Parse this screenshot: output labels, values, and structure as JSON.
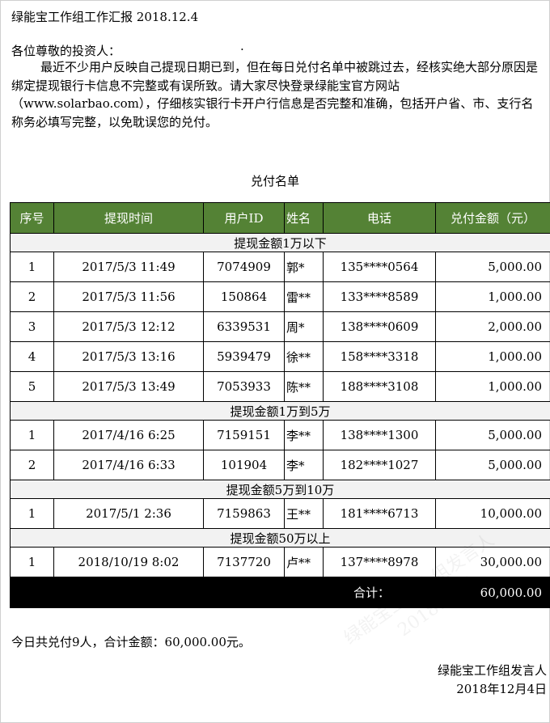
{
  "title": "绿能宝工作组工作汇报 2018.12.4",
  "greeting": "各位尊敬的投资人：",
  "greeting_dot": "·",
  "paragraph": "最近不少用户反映自己提现日期已到，但在每日兑付名单中被跳过去，经核实绝大部分原因是绑定提现银行卡信息不完整或有误所致。请大家尽快登录绿能宝官方网站（www.solarbao.com），仔细核实银行卡开户行信息是否完整和准确，包括开户省、市、支行名称务必填写完整，以免耽误您的兑付。",
  "table_caption": "兑付名单",
  "colors": {
    "header_bg": "#548235",
    "section_bg": "#f2f2f2",
    "total_bg": "#000000"
  },
  "table": {
    "headers": [
      "序号",
      "提现时间",
      "用户ID",
      "姓名",
      "电话",
      "兑付金额（元）"
    ],
    "sections": [
      {
        "label": "提现金额1万以下",
        "rows": [
          [
            "1",
            "2017/5/3 11:49",
            "7074909",
            "郭*",
            "135****0564",
            "5,000.00"
          ],
          [
            "2",
            "2017/5/3 11:56",
            "150864",
            "雷**",
            "133****8589",
            "1,000.00"
          ],
          [
            "3",
            "2017/5/3 12:12",
            "6339531",
            "周*",
            "138****0609",
            "2,000.00"
          ],
          [
            "4",
            "2017/5/3 13:16",
            "5939479",
            "徐**",
            "158****3318",
            "1,000.00"
          ],
          [
            "5",
            "2017/5/3 13:49",
            "7053933",
            "陈**",
            "188****3108",
            "1,000.00"
          ]
        ]
      },
      {
        "label": "提现金额1万到5万",
        "rows": [
          [
            "1",
            "2017/4/16 6:25",
            "7159151",
            "李**",
            "138****1300",
            "5,000.00"
          ],
          [
            "2",
            "2017/4/16 6:33",
            "101904",
            "李*",
            "182****1027",
            "5,000.00"
          ]
        ]
      },
      {
        "label": "提现金额5万到10万",
        "rows": [
          [
            "1",
            "2017/5/1 2:36",
            "7159863",
            "王**",
            "181****6713",
            "10,000.00"
          ]
        ]
      },
      {
        "label": "提现金额50万以上",
        "rows": [
          [
            "1",
            "2018/10/19 8:02",
            "7137720",
            "卢**",
            "137****8978",
            "30,000.00"
          ]
        ]
      }
    ],
    "total_label": "合计：",
    "total_value": "60,000.00"
  },
  "summary": "今日共兑付9人，合计金额：60,000.00元。",
  "signature": "绿能宝工作组发言人",
  "date": "2018年12月4日",
  "watermark": [
    "绿能宝工作小组发言人",
    "20181204"
  ]
}
